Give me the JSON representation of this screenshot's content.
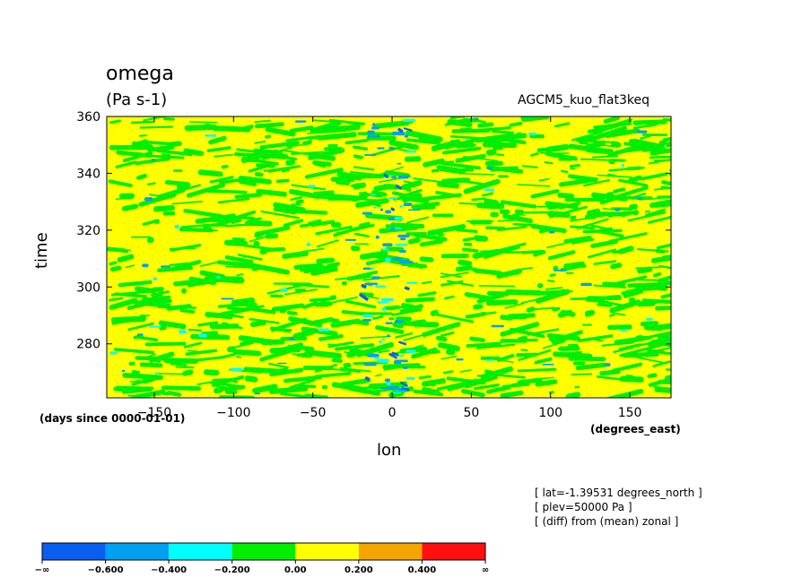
{
  "header": {
    "title": "omega",
    "units": "(Pa s-1)",
    "case_name": "AGCM5_kuo_flat3keq"
  },
  "notes": [
    "[ lat=-1.39531 degrees_north ]",
    "[ plev=50000 Pa ]",
    "[ (diff) from (mean) zonal ]"
  ],
  "chart_data": {
    "type": "heatmap",
    "title": "omega",
    "xlabel": "lon",
    "ylabel": "time",
    "x_units": "(degrees_east)",
    "y_units": "(days since 0000-01-01)",
    "xlim": [
      -180,
      176
    ],
    "ylim": [
      261,
      360
    ],
    "x_ticks": [
      -150,
      -100,
      -50,
      0,
      50,
      100,
      150
    ],
    "x_tick_labels": [
      "−150",
      "−100",
      "−50",
      "0",
      "50",
      "100",
      "150"
    ],
    "y_ticks": [
      280,
      300,
      320,
      340,
      360
    ],
    "y_tick_labels": [
      "280",
      "300",
      "320",
      "340",
      "360"
    ],
    "grid": false,
    "colorbar": {
      "colors": [
        "#0a5ff0",
        "#00a0f0",
        "#00ffff",
        "#00ee00",
        "#ffff00",
        "#f5a500",
        "#ff1010"
      ],
      "boundary_labels": [
        "−∞",
        "−0.600",
        "−0.400",
        "−0.200",
        "0.00",
        "0.200",
        "0.400",
        "∞"
      ]
    },
    "field_description_values": {
      "dominant_levels": [
        "0.00 to 0.200",
        "−0.200 to 0.00"
      ],
      "strong_negative_band_lon": [
        -20,
        10
      ]
    }
  }
}
